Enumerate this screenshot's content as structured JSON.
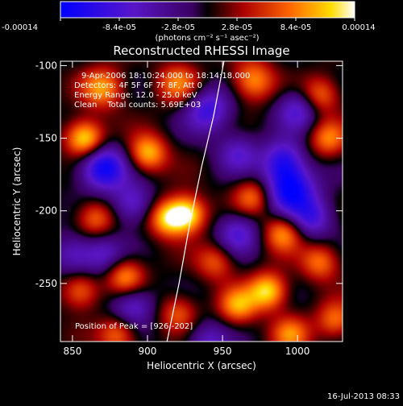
{
  "chart_data": {
    "type": "heatmap",
    "title": "Reconstructed RHESSI Image",
    "xlabel": "Heliocentric X (arcsec)",
    "ylabel": "Heliocentric Y (arcsec)",
    "xlim": [
      842,
      1030
    ],
    "ylim": [
      -290,
      -97
    ],
    "x_ticks": [
      850,
      900,
      950,
      1000
    ],
    "y_ticks": [
      -100,
      -150,
      -200,
      -250
    ],
    "colorbar": {
      "range": [
        -0.00014,
        0.00014
      ],
      "ticks": [
        {
          "value": -0.00014,
          "label": "-0.00014"
        },
        {
          "value": -8.4e-05,
          "label": "-8.4e-05"
        },
        {
          "value": -2.8e-05,
          "label": "-2.8e-05"
        },
        {
          "value": 2.8e-05,
          "label": "2.8e-05"
        },
        {
          "value": 8.4e-05,
          "label": "8.4e-05"
        },
        {
          "value": 0.00014,
          "label": "0.00014"
        }
      ],
      "unit_label": "(photons cm⁻² s⁻¹ asec⁻²)"
    },
    "info_lines": [
      "9-Apr-2006 18:10:24.000 to 18:14:18.000",
      "Detectors: 4F 5F 6F 7F 8F, Att 0",
      "Energy Range: 12.0 - 25.0 keV",
      "Clean    Total counts: 5.69E+03"
    ],
    "peak_label": "Position of Peak = [926,-202]",
    "peak": [
      926,
      -202
    ],
    "limb_points": [
      [
        913,
        -290
      ],
      [
        921,
        -250
      ],
      [
        928,
        -210
      ],
      [
        936,
        -170
      ],
      [
        944,
        -135
      ],
      [
        951,
        -97
      ]
    ],
    "sources": [
      {
        "x": 858,
        "y": -150,
        "a": 1.0,
        "r": 9
      },
      {
        "x": 870,
        "y": -115,
        "a": 0.7,
        "r": 10
      },
      {
        "x": 900,
        "y": -160,
        "a": 0.8,
        "r": 9
      },
      {
        "x": 913,
        "y": -205,
        "a": 0.8,
        "r": 9
      },
      {
        "x": 926,
        "y": -202,
        "a": 1.0,
        "r": 9
      },
      {
        "x": 920,
        "y": -112,
        "a": 0.6,
        "r": 10
      },
      {
        "x": 865,
        "y": -205,
        "a": 0.6,
        "r": 9
      },
      {
        "x": 885,
        "y": -245,
        "a": 0.7,
        "r": 9
      },
      {
        "x": 855,
        "y": -255,
        "a": 0.6,
        "r": 9
      },
      {
        "x": 880,
        "y": -285,
        "a": 0.6,
        "r": 9
      },
      {
        "x": 920,
        "y": -270,
        "a": 0.5,
        "r": 9
      },
      {
        "x": 960,
        "y": -265,
        "a": 0.7,
        "r": 9
      },
      {
        "x": 980,
        "y": -255,
        "a": 0.9,
        "r": 9
      },
      {
        "x": 945,
        "y": -235,
        "a": 0.5,
        "r": 9
      },
      {
        "x": 970,
        "y": -110,
        "a": 0.7,
        "r": 10
      },
      {
        "x": 1015,
        "y": -120,
        "a": 0.6,
        "r": 9
      },
      {
        "x": 1020,
        "y": -150,
        "a": 0.6,
        "r": 9
      },
      {
        "x": 970,
        "y": -190,
        "a": 0.6,
        "r": 9
      },
      {
        "x": 990,
        "y": -215,
        "a": 0.7,
        "r": 9
      },
      {
        "x": 1015,
        "y": -235,
        "a": 0.6,
        "r": 9
      },
      {
        "x": 995,
        "y": -285,
        "a": 0.6,
        "r": 9
      },
      {
        "x": 1025,
        "y": -275,
        "a": 0.6,
        "r": 9
      },
      {
        "x": 870,
        "y": -170,
        "a": -1.0,
        "r": 11
      },
      {
        "x": 890,
        "y": -195,
        "a": -0.6,
        "r": 10
      },
      {
        "x": 940,
        "y": -130,
        "a": -0.7,
        "r": 11
      },
      {
        "x": 995,
        "y": -185,
        "a": -1.0,
        "r": 12
      },
      {
        "x": 990,
        "y": -165,
        "a": -0.7,
        "r": 10
      },
      {
        "x": 890,
        "y": -265,
        "a": -0.6,
        "r": 10
      },
      {
        "x": 960,
        "y": -215,
        "a": -0.6,
        "r": 10
      },
      {
        "x": 1010,
        "y": -205,
        "a": -0.6,
        "r": 10
      },
      {
        "x": 850,
        "y": -230,
        "a": -0.5,
        "r": 10
      },
      {
        "x": 1000,
        "y": -130,
        "a": -0.6,
        "r": 10
      },
      {
        "x": 960,
        "y": -160,
        "a": -0.5,
        "r": 10
      },
      {
        "x": 870,
        "y": -230,
        "a": -0.5,
        "r": 10
      },
      {
        "x": 940,
        "y": -290,
        "a": -0.5,
        "r": 10
      }
    ]
  },
  "footer": {
    "timestamp": "16-Jul-2013 08:33"
  }
}
